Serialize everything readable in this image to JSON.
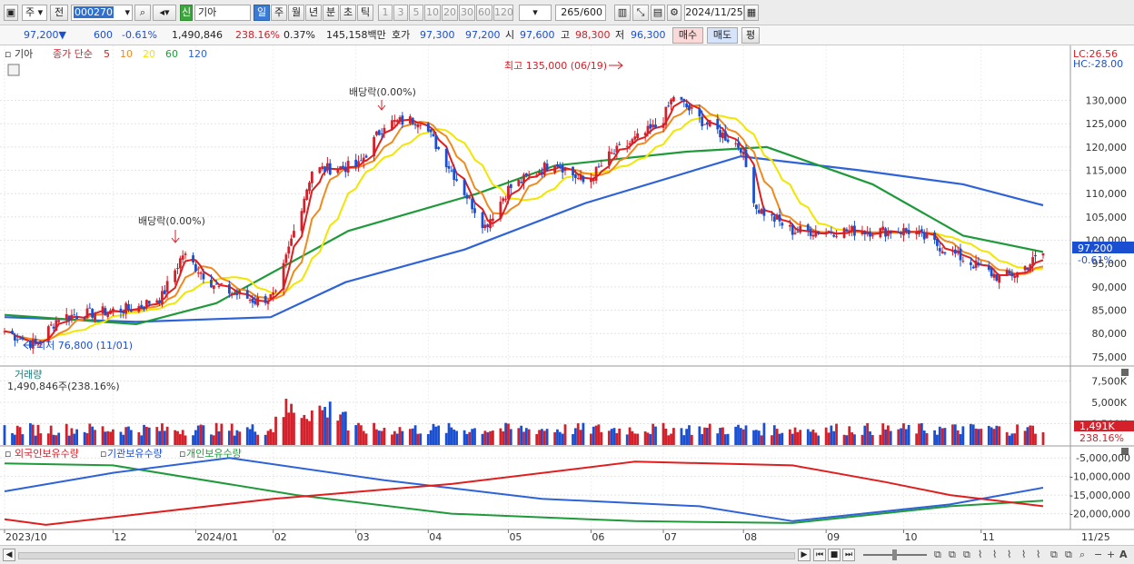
{
  "toolbar": {
    "jong_label": "주",
    "prev_label": "전",
    "code_value": "000270",
    "shin_label": "신",
    "name_value": "기아",
    "periods": [
      "일",
      "주",
      "월",
      "년",
      "분",
      "초",
      "틱"
    ],
    "numbers": [
      "1",
      "3",
      "5",
      "10",
      "20",
      "30",
      "60",
      "120"
    ],
    "count_value": "265",
    "count_total": "/600",
    "date_value": "2024/11/25"
  },
  "quote": {
    "price": "97,200",
    "change": "600",
    "change_pct": "-0.61%",
    "volume": "1,490,846",
    "vol_ratio": "238.16%",
    "turnover": "0.37%",
    "amount": "145,158백만",
    "hoga_label": "호가",
    "ask": "97,300",
    "bid": "97,200",
    "open_label": "시",
    "open": "97,600",
    "high_label": "고",
    "high": "98,300",
    "low_label": "저",
    "low": "96,300",
    "buy_label": "매수",
    "sell_label": "매도",
    "eval_label": "평"
  },
  "price_pane": {
    "name_label": "기아",
    "ma_title": "종가 단순",
    "ma_periods": [
      "5",
      "10",
      "20",
      "60",
      "120"
    ],
    "lc_label": "LC:26.56",
    "hc_label": "HC:-28.00",
    "y_ticks": [
      "130,000",
      "125,000",
      "120,000",
      "115,000",
      "110,000",
      "105,000",
      "100,000",
      "95,000",
      "90,000",
      "85,000",
      "80,000",
      "75,000"
    ],
    "last_price": "97,200",
    "last_change": "-0.61%",
    "annot_dividend1": "배당락(0.00%)",
    "annot_dividend2": "배당락(0.00%)",
    "annot_high": "최고 135,000 (06/19)",
    "annot_low": "최저 76,800 (11/01)"
  },
  "volume_pane": {
    "title": "거래량",
    "value": "1,490,846주(238.16%)",
    "y_ticks": [
      "7,500K",
      "5,000K",
      "2,500K"
    ],
    "last_value": "1,491K",
    "last_ratio": "238.16%"
  },
  "holding_pane": {
    "foreign_label": "외국인보유수량",
    "inst_label": "기관보유수량",
    "indiv_label": "개인보유수량",
    "y_ticks": [
      "-5,000,000",
      "-10,000,000",
      "-15,000,000",
      "-20,000,000"
    ]
  },
  "x_axis": {
    "labels": [
      "2023/10",
      "12",
      "2024/01",
      "02",
      "03",
      "04",
      "05",
      "06",
      "07",
      "08",
      "09",
      "10",
      "11"
    ],
    "end_label": "11/25"
  },
  "colors": {
    "ma5": "#e01e1e",
    "ma10": "#f08a1c",
    "ma20": "#f2e600",
    "ma60": "#1f9a3a",
    "ma120": "#2e62d9",
    "up": "#d3202a",
    "down": "#1b4fd1"
  },
  "chart_data": {
    "type": "candlestick",
    "title": "",
    "ylim": [
      74000,
      134000
    ],
    "x_months": [
      "2023/10",
      "12",
      "2024/01",
      "02",
      "03",
      "04",
      "05",
      "06",
      "07",
      "08",
      "09",
      "10",
      "11"
    ],
    "close_keypoints": [
      [
        "2023-10-20",
        80500
      ],
      [
        "2023-11-01",
        77500
      ],
      [
        "2023-11-10",
        83500
      ],
      [
        "2023-11-25",
        84500
      ],
      [
        "2023-12-10",
        85500
      ],
      [
        "2023-12-20",
        88000
      ],
      [
        "2023-12-28",
        97000
      ],
      [
        "2024-01-10",
        90000
      ],
      [
        "2024-01-25",
        87000
      ],
      [
        "2024-02-02",
        88000
      ],
      [
        "2024-02-08",
        100000
      ],
      [
        "2024-02-16",
        115000
      ],
      [
        "2024-03-05",
        116000
      ],
      [
        "2024-03-15",
        125000
      ],
      [
        "2024-03-29",
        126000
      ],
      [
        "2024-04-10",
        115000
      ],
      [
        "2024-04-23",
        103000
      ],
      [
        "2024-05-02",
        111000
      ],
      [
        "2024-05-20",
        117000
      ],
      [
        "2024-06-01",
        112000
      ],
      [
        "2024-06-10",
        118000
      ],
      [
        "2024-06-30",
        125000
      ],
      [
        "2024-07-05",
        131000
      ],
      [
        "2024-07-15",
        126000
      ],
      [
        "2024-07-31",
        120000
      ],
      [
        "2024-08-06",
        107000
      ],
      [
        "2024-08-20",
        102000
      ],
      [
        "2024-09-10",
        102000
      ],
      [
        "2024-10-05",
        102000
      ],
      [
        "2024-10-25",
        96000
      ],
      [
        "2024-11-08",
        92000
      ],
      [
        "2024-11-15",
        93000
      ],
      [
        "2024-11-25",
        97200
      ]
    ],
    "ma_series": {
      "ma60": [
        [
          "2023-10-20",
          84000
        ],
        [
          "2023-12-10",
          82000
        ],
        [
          "2024-01-10",
          86500
        ],
        [
          "2024-03-01",
          102000
        ],
        [
          "2024-04-20",
          110000
        ],
        [
          "2024-05-20",
          116000
        ],
        [
          "2024-07-10",
          119000
        ],
        [
          "2024-08-10",
          120000
        ],
        [
          "2024-09-20",
          112000
        ],
        [
          "2024-10-25",
          101000
        ],
        [
          "2024-11-25",
          97500
        ]
      ],
      "ma120": [
        [
          "2023-10-20",
          83500
        ],
        [
          "2023-12-10",
          82500
        ],
        [
          "2024-01-31",
          83500
        ],
        [
          "2024-02-29",
          91000
        ],
        [
          "2024-04-15",
          98000
        ],
        [
          "2024-06-01",
          108000
        ],
        [
          "2024-07-31",
          118000
        ],
        [
          "2024-09-15",
          115000
        ],
        [
          "2024-10-25",
          112000
        ],
        [
          "2024-11-25",
          107500
        ]
      ]
    },
    "volume_unit": "K",
    "holding_series": {
      "foreign": [
        [
          "2023-10-20",
          -6500000
        ],
        [
          "2023-12-01",
          -7000000
        ],
        [
          "2024-02-10",
          -15000000
        ],
        [
          "2024-04-10",
          -20000000
        ],
        [
          "2024-06-20",
          -22000000
        ],
        [
          "2024-08-20",
          -22500000
        ],
        [
          "2024-10-20",
          -18000000
        ],
        [
          "2024-11-25",
          -16500000
        ]
      ],
      "institution": [
        [
          "2023-10-20",
          -14000000
        ],
        [
          "2023-12-01",
          -9000000
        ],
        [
          "2024-01-15",
          -5000000
        ],
        [
          "2024-03-15",
          -11000000
        ],
        [
          "2024-05-15",
          -16000000
        ],
        [
          "2024-07-15",
          -18000000
        ],
        [
          "2024-08-20",
          -22000000
        ],
        [
          "2024-10-20",
          -17500000
        ],
        [
          "2024-11-25",
          -13000000
        ]
      ],
      "individual": [
        [
          "2023-10-20",
          -21500000
        ],
        [
          "2023-11-05",
          -23000000
        ],
        [
          "2024-02-01",
          -16000000
        ],
        [
          "2024-04-10",
          -12000000
        ],
        [
          "2024-06-20",
          -6000000
        ],
        [
          "2024-08-20",
          -7000000
        ],
        [
          "2024-09-25",
          -11500000
        ],
        [
          "2024-10-20",
          -15000000
        ],
        [
          "2024-11-25",
          -18000000
        ]
      ]
    }
  }
}
